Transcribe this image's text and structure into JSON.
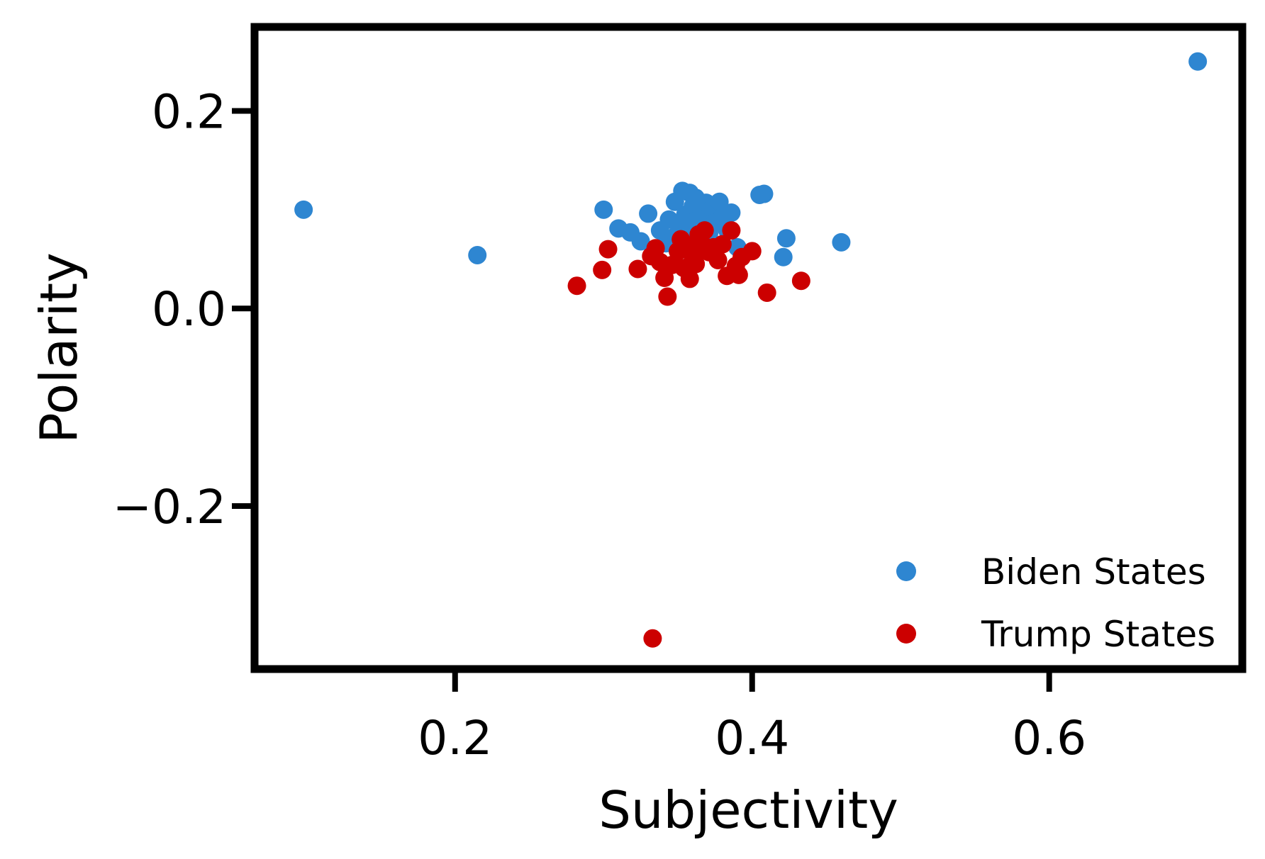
{
  "chart_data": {
    "type": "scatter",
    "title": "",
    "xlabel": "Subjectivity",
    "ylabel": "Polarity",
    "xlim": [
      0.065,
      0.73
    ],
    "ylim": [
      -0.365,
      0.285
    ],
    "x_ticks": [
      {
        "value": 0.2,
        "label": "0.2"
      },
      {
        "value": 0.4,
        "label": "0.4"
      },
      {
        "value": 0.6,
        "label": "0.6"
      }
    ],
    "y_ticks": [
      {
        "value": 0.2,
        "label": "0.2"
      },
      {
        "value": 0.0,
        "label": "0.0"
      },
      {
        "value": -0.2,
        "label": "−0.2"
      }
    ],
    "grid": false,
    "legend_position": "bottom-right",
    "series": [
      {
        "name": "Biden States",
        "color": "#2e86d1",
        "points": [
          {
            "x": 0.098,
            "y": 0.1
          },
          {
            "x": 0.215,
            "y": 0.054
          },
          {
            "x": 0.3,
            "y": 0.1
          },
          {
            "x": 0.31,
            "y": 0.081
          },
          {
            "x": 0.318,
            "y": 0.077
          },
          {
            "x": 0.325,
            "y": 0.068
          },
          {
            "x": 0.33,
            "y": 0.096
          },
          {
            "x": 0.338,
            "y": 0.079
          },
          {
            "x": 0.342,
            "y": 0.066
          },
          {
            "x": 0.344,
            "y": 0.09
          },
          {
            "x": 0.347,
            "y": 0.072
          },
          {
            "x": 0.348,
            "y": 0.108
          },
          {
            "x": 0.35,
            "y": 0.085
          },
          {
            "x": 0.352,
            "y": 0.06
          },
          {
            "x": 0.353,
            "y": 0.119
          },
          {
            "x": 0.355,
            "y": 0.095
          },
          {
            "x": 0.357,
            "y": 0.078
          },
          {
            "x": 0.358,
            "y": 0.117
          },
          {
            "x": 0.36,
            "y": 0.103
          },
          {
            "x": 0.361,
            "y": 0.088
          },
          {
            "x": 0.362,
            "y": 0.112
          },
          {
            "x": 0.364,
            "y": 0.083
          },
          {
            "x": 0.366,
            "y": 0.099
          },
          {
            "x": 0.368,
            "y": 0.092
          },
          {
            "x": 0.369,
            "y": 0.107
          },
          {
            "x": 0.371,
            "y": 0.076
          },
          {
            "x": 0.373,
            "y": 0.101
          },
          {
            "x": 0.375,
            "y": 0.087
          },
          {
            "x": 0.378,
            "y": 0.108
          },
          {
            "x": 0.38,
            "y": 0.093
          },
          {
            "x": 0.383,
            "y": 0.08
          },
          {
            "x": 0.386,
            "y": 0.097
          },
          {
            "x": 0.39,
            "y": 0.062
          },
          {
            "x": 0.405,
            "y": 0.115
          },
          {
            "x": 0.408,
            "y": 0.116
          },
          {
            "x": 0.421,
            "y": 0.052
          },
          {
            "x": 0.423,
            "y": 0.071
          },
          {
            "x": 0.46,
            "y": 0.067
          },
          {
            "x": 0.7,
            "y": 0.25
          }
        ]
      },
      {
        "name": "Trump States",
        "color": "#cc0000",
        "points": [
          {
            "x": 0.282,
            "y": 0.023
          },
          {
            "x": 0.299,
            "y": 0.039
          },
          {
            "x": 0.303,
            "y": 0.06
          },
          {
            "x": 0.323,
            "y": 0.04
          },
          {
            "x": 0.332,
            "y": 0.053
          },
          {
            "x": 0.335,
            "y": 0.061
          },
          {
            "x": 0.338,
            "y": 0.047
          },
          {
            "x": 0.341,
            "y": 0.031
          },
          {
            "x": 0.343,
            "y": 0.012
          },
          {
            "x": 0.346,
            "y": 0.044
          },
          {
            "x": 0.35,
            "y": 0.058
          },
          {
            "x": 0.352,
            "y": 0.07
          },
          {
            "x": 0.354,
            "y": 0.041
          },
          {
            "x": 0.356,
            "y": 0.064
          },
          {
            "x": 0.358,
            "y": 0.03
          },
          {
            "x": 0.36,
            "y": 0.053
          },
          {
            "x": 0.362,
            "y": 0.045
          },
          {
            "x": 0.364,
            "y": 0.075
          },
          {
            "x": 0.366,
            "y": 0.066
          },
          {
            "x": 0.368,
            "y": 0.079
          },
          {
            "x": 0.371,
            "y": 0.057
          },
          {
            "x": 0.374,
            "y": 0.062
          },
          {
            "x": 0.377,
            "y": 0.049
          },
          {
            "x": 0.38,
            "y": 0.065
          },
          {
            "x": 0.383,
            "y": 0.033
          },
          {
            "x": 0.386,
            "y": 0.079
          },
          {
            "x": 0.389,
            "y": 0.043
          },
          {
            "x": 0.391,
            "y": 0.034
          },
          {
            "x": 0.393,
            "y": 0.052
          },
          {
            "x": 0.4,
            "y": 0.058
          },
          {
            "x": 0.41,
            "y": 0.016
          },
          {
            "x": 0.433,
            "y": 0.028
          },
          {
            "x": 0.333,
            "y": -0.334
          }
        ]
      }
    ]
  }
}
